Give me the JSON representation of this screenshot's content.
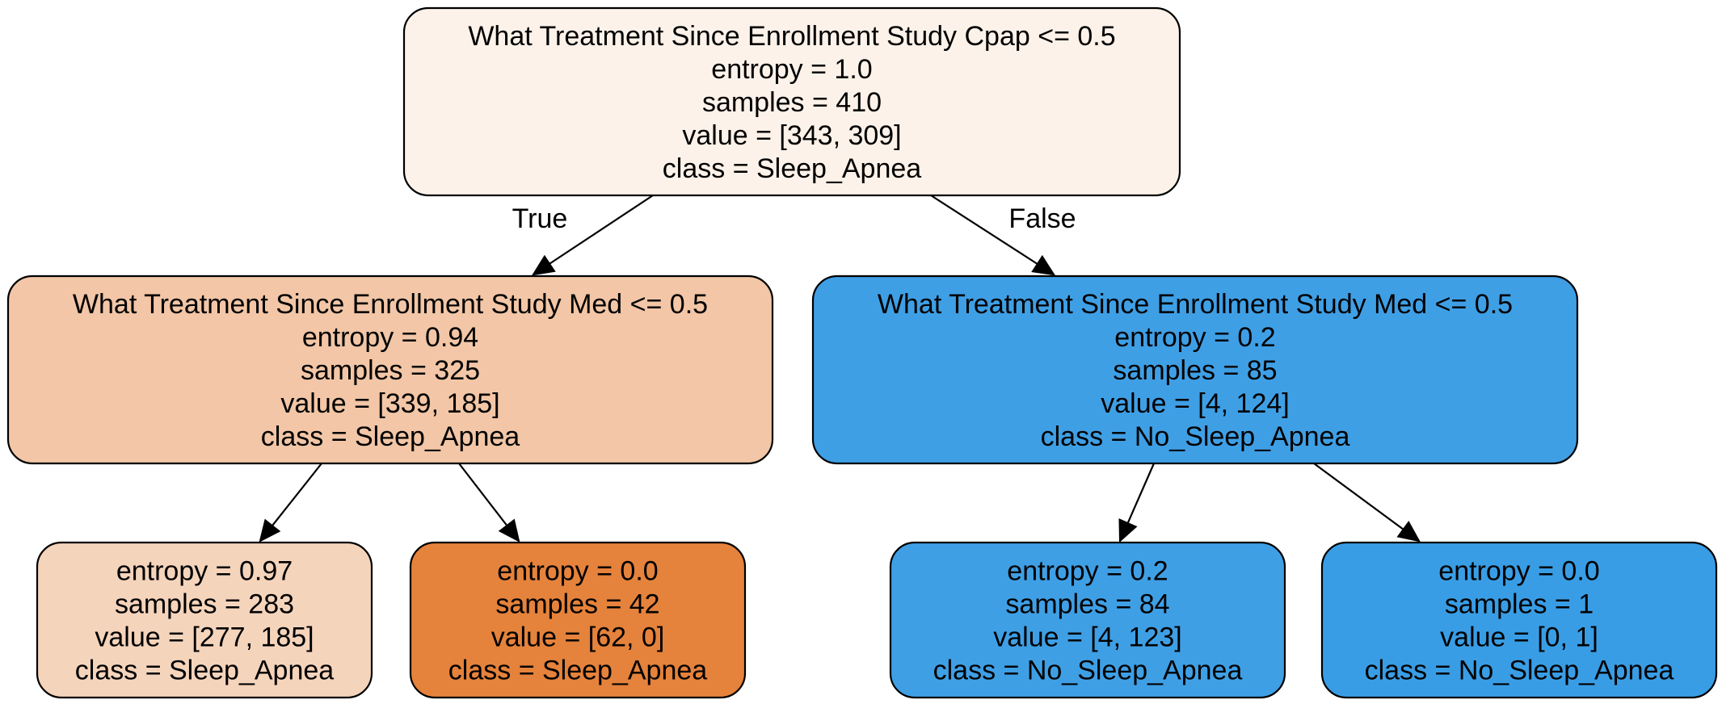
{
  "nodes": [
    {
      "id": "n0",
      "fill": "#fcf2e9",
      "lines": [
        "What Treatment Since Enrollment Study Cpap <= 0.5",
        "entropy = 1.0",
        "samples = 410",
        "value = [343, 309]",
        "class = Sleep_Apnea"
      ]
    },
    {
      "id": "n1",
      "fill": "#f2c6a6",
      "lines": [
        "What Treatment Since Enrollment Study Med <= 0.5",
        "entropy = 0.94",
        "samples = 325",
        "value = [339, 185]",
        "class = Sleep_Apnea"
      ]
    },
    {
      "id": "n2",
      "fill": "#3f9fe5",
      "lines": [
        "What Treatment Since Enrollment Study Med <= 0.5",
        "entropy = 0.2",
        "samples = 85",
        "value = [4, 124]",
        "class = No_Sleep_Apnea"
      ]
    },
    {
      "id": "n3",
      "fill": "#f5d4bc",
      "lines": [
        "entropy = 0.97",
        "samples = 283",
        "value = [277, 185]",
        "class = Sleep_Apnea"
      ]
    },
    {
      "id": "n4",
      "fill": "#e5823b",
      "lines": [
        "entropy = 0.0",
        "samples = 42",
        "value = [62, 0]",
        "class = Sleep_Apnea"
      ]
    },
    {
      "id": "n5",
      "fill": "#3f9fe5",
      "lines": [
        "entropy = 0.2",
        "samples = 84",
        "value = [4, 123]",
        "class = No_Sleep_Apnea"
      ]
    },
    {
      "id": "n6",
      "fill": "#399de5",
      "lines": [
        "entropy = 0.0",
        "samples = 1",
        "value = [0, 1]",
        "class = No_Sleep_Apnea"
      ]
    }
  ],
  "edges": [
    {
      "from": "n0",
      "to": "n1",
      "label": "True"
    },
    {
      "from": "n0",
      "to": "n2",
      "label": "False"
    },
    {
      "from": "n1",
      "to": "n3",
      "label": ""
    },
    {
      "from": "n1",
      "to": "n4",
      "label": ""
    },
    {
      "from": "n2",
      "to": "n5",
      "label": ""
    },
    {
      "from": "n2",
      "to": "n6",
      "label": ""
    }
  ]
}
